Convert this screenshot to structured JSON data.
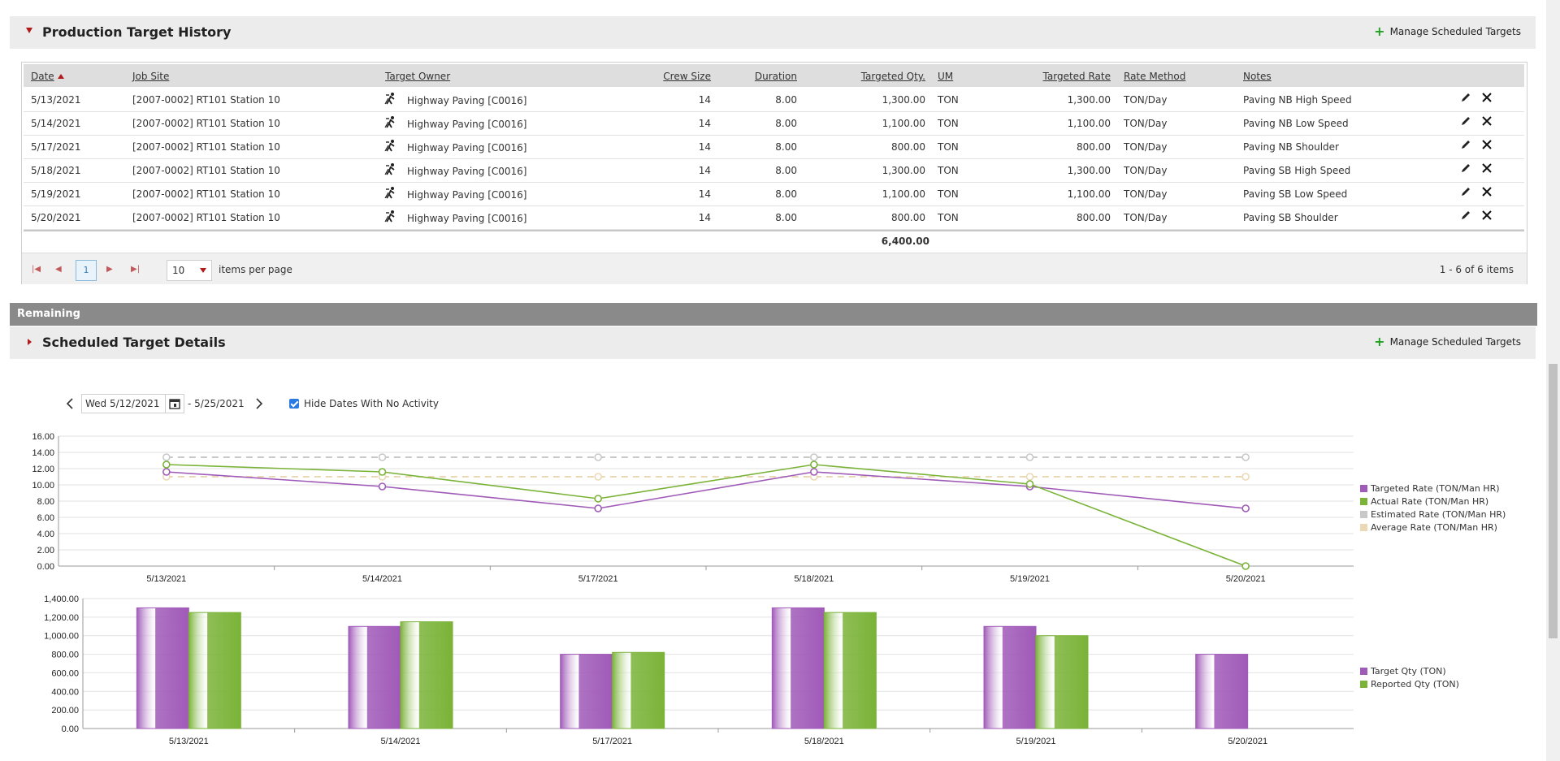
{
  "history": {
    "title": "Production Target History",
    "manage_label": "Manage Scheduled Targets",
    "columns": [
      "Date",
      "Job Site",
      "Target Owner",
      "Crew Size",
      "Duration",
      "Targeted Qty.",
      "UM",
      "Targeted Rate",
      "Rate Method",
      "Notes"
    ],
    "rows": [
      {
        "date": "5/13/2021",
        "job_site": "[2007-0002] RT101 Station 10",
        "owner": "Highway Paving [C0016]",
        "crew": "14",
        "duration": "8.00",
        "qty": "1,300.00",
        "um": "TON",
        "rate": "1,300.00",
        "method": "TON/Day",
        "notes": "Paving NB High Speed"
      },
      {
        "date": "5/14/2021",
        "job_site": "[2007-0002] RT101 Station 10",
        "owner": "Highway Paving [C0016]",
        "crew": "14",
        "duration": "8.00",
        "qty": "1,100.00",
        "um": "TON",
        "rate": "1,100.00",
        "method": "TON/Day",
        "notes": "Paving NB Low Speed"
      },
      {
        "date": "5/17/2021",
        "job_site": "[2007-0002] RT101 Station 10",
        "owner": "Highway Paving [C0016]",
        "crew": "14",
        "duration": "8.00",
        "qty": "800.00",
        "um": "TON",
        "rate": "800.00",
        "method": "TON/Day",
        "notes": "Paving NB Shoulder"
      },
      {
        "date": "5/18/2021",
        "job_site": "[2007-0002] RT101 Station 10",
        "owner": "Highway Paving [C0016]",
        "crew": "14",
        "duration": "8.00",
        "qty": "1,300.00",
        "um": "TON",
        "rate": "1,300.00",
        "method": "TON/Day",
        "notes": "Paving SB High Speed"
      },
      {
        "date": "5/19/2021",
        "job_site": "[2007-0002] RT101 Station 10",
        "owner": "Highway Paving [C0016]",
        "crew": "14",
        "duration": "8.00",
        "qty": "1,100.00",
        "um": "TON",
        "rate": "1,100.00",
        "method": "TON/Day",
        "notes": "Paving SB Low Speed"
      },
      {
        "date": "5/20/2021",
        "job_site": "[2007-0002] RT101 Station 10",
        "owner": "Highway Paving [C0016]",
        "crew": "14",
        "duration": "8.00",
        "qty": "800.00",
        "um": "TON",
        "rate": "800.00",
        "method": "TON/Day",
        "notes": "Paving SB Shoulder"
      }
    ],
    "total_qty": "6,400.00",
    "pager": {
      "current_page": "1",
      "page_size": "10",
      "items_per_page_label": "items per page",
      "info": "1 - 6 of 6 items"
    }
  },
  "remaining_label": "Remaining",
  "details": {
    "title": "Scheduled Target Details",
    "manage_label": "Manage Scheduled Targets",
    "start_date": "Wed 5/12/2021",
    "end_date": "- 5/25/2021",
    "hide_dates_label": "Hide Dates With No Activity",
    "hide_dates_checked": true
  },
  "colors": {
    "purple": "#a05ab8",
    "green": "#7ab338",
    "gray": "#c8c8c8",
    "tan": "#ead9b4"
  },
  "chart_data": [
    {
      "type": "line",
      "categories": [
        "5/13/2021",
        "5/14/2021",
        "5/17/2021",
        "5/18/2021",
        "5/19/2021",
        "5/20/2021"
      ],
      "y_ticks": [
        "0.00",
        "2.00",
        "4.00",
        "6.00",
        "8.00",
        "10.00",
        "12.00",
        "14.00",
        "16.00"
      ],
      "ylim": [
        0,
        16
      ],
      "series": [
        {
          "name": "Targeted Rate (TON/Man HR)",
          "color": "#a05ab8",
          "style": "solid",
          "values": [
            11.6,
            9.8,
            7.1,
            11.6,
            9.8,
            7.1
          ]
        },
        {
          "name": "Actual Rate (TON/Man HR)",
          "color": "#7ab338",
          "style": "solid",
          "values": [
            12.5,
            11.6,
            8.3,
            12.5,
            10.1,
            0
          ]
        },
        {
          "name": "Estimated Rate (TON/Man HR)",
          "color": "#c8c8c8",
          "style": "dashed",
          "values": [
            13.4,
            13.4,
            13.4,
            13.4,
            13.4,
            13.4
          ]
        },
        {
          "name": "Average Rate (TON/Man HR)",
          "color": "#ead9b4",
          "style": "dashed",
          "values": [
            11.0,
            11.0,
            11.0,
            11.0,
            11.0,
            11.0
          ]
        }
      ],
      "grid": true,
      "legend": "right"
    },
    {
      "type": "bar",
      "categories": [
        "5/13/2021",
        "5/14/2021",
        "5/17/2021",
        "5/18/2021",
        "5/19/2021",
        "5/20/2021"
      ],
      "y_ticks": [
        "0.00",
        "200.00",
        "400.00",
        "600.00",
        "800.00",
        "1,000.00",
        "1,200.00",
        "1,400.00"
      ],
      "ylim": [
        0,
        1400
      ],
      "series": [
        {
          "name": "Target Qty (TON)",
          "color": "#a05ab8",
          "values": [
            1300,
            1100,
            800,
            1300,
            1100,
            800
          ]
        },
        {
          "name": "Reported Qty (TON)",
          "color": "#7ab338",
          "values": [
            1250,
            1150,
            820,
            1250,
            1000,
            null
          ]
        }
      ],
      "grid": true,
      "legend": "right"
    }
  ]
}
